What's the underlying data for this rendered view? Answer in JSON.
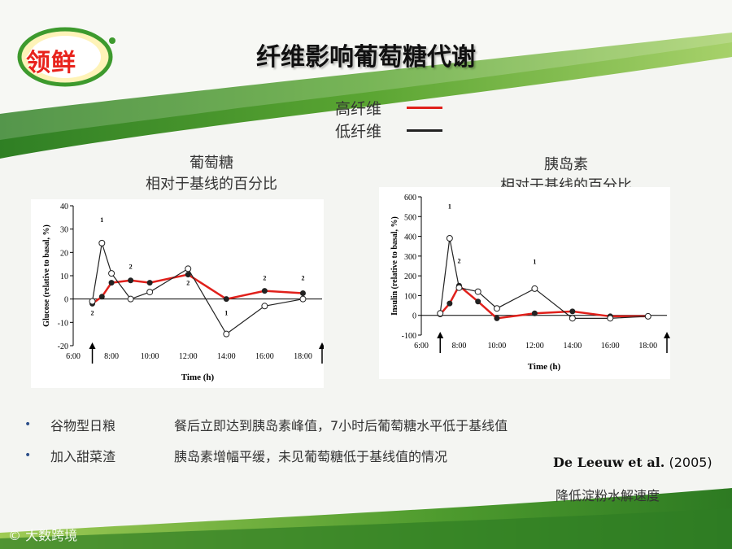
{
  "title": "纤维影响葡萄糖代谢",
  "logo": {
    "text": "领鲜"
  },
  "legend": [
    {
      "label": "高纤维",
      "color": "#e0201b"
    },
    {
      "label": "低纤维",
      "color": "#222222"
    }
  ],
  "chart_headings": {
    "glucose": {
      "line1": "葡萄糖",
      "line2": "相对于基线的百分比"
    },
    "insulin": {
      "line1": "胰岛素",
      "line2": "相对于基线的百分比"
    }
  },
  "chart_data": [
    {
      "type": "line",
      "xlabel": "Time (h)",
      "ylabel": "Glucose (relative to basal, %)",
      "ylim": [
        -20,
        40
      ],
      "yticks": [
        -20,
        -10,
        0,
        10,
        20,
        30,
        40
      ],
      "xlim": [
        6.0,
        19.0
      ],
      "xticks": [
        6,
        8,
        10,
        12,
        14,
        16,
        18
      ],
      "xtick_labels": [
        "6:00",
        "8:00",
        "10:00",
        "12:00",
        "14:00",
        "16:00",
        "18:00"
      ],
      "meal_arrows_x": [
        7.0,
        19.0
      ],
      "series": [
        {
          "name": "高纤维",
          "color": "#e0201b",
          "x": [
            7.0,
            7.5,
            8.0,
            9.0,
            10.0,
            12.0,
            14.0,
            16.0,
            18.0
          ],
          "y": [
            -2,
            1,
            7,
            8,
            7,
            10.5,
            0,
            3.5,
            2.5
          ]
        },
        {
          "name": "低纤维",
          "color": "#222222",
          "x": [
            7.0,
            7.5,
            8.0,
            9.0,
            10.0,
            12.0,
            14.0,
            16.0,
            18.0
          ],
          "y": [
            -1,
            24,
            11,
            0,
            3,
            13,
            -15,
            -3,
            0
          ]
        }
      ],
      "annotations": [
        {
          "x": 7.5,
          "y": 33,
          "text": "1"
        },
        {
          "x": 7.0,
          "y": -7,
          "text": "2"
        },
        {
          "x": 9.0,
          "y": 13,
          "text": "2"
        },
        {
          "x": 12.0,
          "y": 6,
          "text": "2"
        },
        {
          "x": 14.0,
          "y": -7,
          "text": "1"
        },
        {
          "x": 16.0,
          "y": 8,
          "text": "2"
        },
        {
          "x": 18.0,
          "y": 8,
          "text": "2"
        }
      ]
    },
    {
      "type": "line",
      "xlabel": "Time (h)",
      "ylabel": "Insulin (relative to basal, %)",
      "ylim": [
        -100,
        600
      ],
      "yticks": [
        -100,
        0,
        100,
        200,
        300,
        400,
        500,
        600
      ],
      "xlim": [
        6.0,
        19.0
      ],
      "xticks": [
        6,
        8,
        10,
        12,
        14,
        16,
        18
      ],
      "xtick_labels": [
        "6:00",
        "8:00",
        "10:00",
        "12:00",
        "14:00",
        "16:00",
        "18:00"
      ],
      "meal_arrows_x": [
        7.0,
        19.0
      ],
      "series": [
        {
          "name": "高纤维",
          "color": "#e0201b",
          "x": [
            7.0,
            7.5,
            8.0,
            9.0,
            10.0,
            12.0,
            14.0,
            16.0,
            18.0
          ],
          "y": [
            5,
            60,
            150,
            70,
            -15,
            10,
            20,
            -5,
            -5
          ]
        },
        {
          "name": "低纤维",
          "color": "#222222",
          "x": [
            7.0,
            7.5,
            8.0,
            9.0,
            10.0,
            12.0,
            14.0,
            16.0,
            18.0
          ],
          "y": [
            10,
            390,
            140,
            120,
            35,
            135,
            -15,
            -15,
            -5
          ]
        }
      ],
      "annotations": [
        {
          "x": 7.5,
          "y": 540,
          "text": "1"
        },
        {
          "x": 8.0,
          "y": 265,
          "text": "2"
        },
        {
          "x": 12.0,
          "y": 260,
          "text": "1"
        }
      ]
    }
  ],
  "bullets": [
    {
      "term": "谷物型日粮",
      "desc": "餐后立即达到胰岛素峰值，7小时后葡萄糖水平低于基线值"
    },
    {
      "term": "加入甜菜渣",
      "desc": "胰岛素增幅平缓，未见葡萄糖低于基线值的情况"
    }
  ],
  "citation": {
    "author": "De Leeuw et al.",
    "year": "(2005)"
  },
  "note": "降低淀粉水解速度",
  "watermark": "大数跨境",
  "colors": {
    "green_dark": "#3f8a2a",
    "green_light": "#8cc43c",
    "accent_red": "#e0201b"
  }
}
